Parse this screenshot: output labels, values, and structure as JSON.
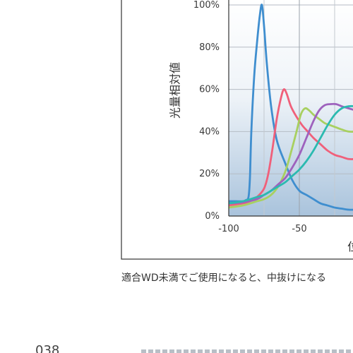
{
  "chart_data": {
    "type": "line",
    "title": "",
    "ylabel": "光量相対値",
    "xlabel_fragment": "位",
    "xlim": [
      -100,
      -10
    ],
    "ylim": [
      0,
      100
    ],
    "y_ticks": [
      "0%",
      "20%",
      "40%",
      "60%",
      "80%",
      "100%"
    ],
    "x_ticks": [
      {
        "value": -100,
        "label": "-100"
      },
      {
        "value": -50,
        "label": "-50"
      }
    ],
    "grid": true,
    "background": "gradient",
    "series": [
      {
        "color": "#3f8ecf",
        "x": [
          -100,
          -95,
          -90,
          -88,
          -86,
          -85,
          -84,
          -82,
          -80,
          -78,
          -76.5,
          -75,
          -73,
          -70,
          -66,
          -60,
          -55,
          -50,
          -45,
          -40,
          -35,
          -30,
          -25,
          -20,
          -15,
          -10
        ],
        "y": [
          7,
          7,
          7,
          7.5,
          9,
          18,
          40,
          66,
          82,
          95,
          100,
          90,
          72,
          52,
          36,
          25,
          17,
          12,
          10,
          8,
          6,
          5,
          4,
          3.5,
          3,
          3
        ]
      },
      {
        "color": "#f0607a",
        "x": [
          -100,
          -95,
          -90,
          -85,
          -80,
          -75,
          -72,
          -69,
          -66,
          -63,
          -61,
          -59,
          -56,
          -52,
          -48,
          -44,
          -40,
          -35,
          -30,
          -25,
          -20,
          -15,
          -10
        ],
        "y": [
          5,
          5.5,
          6,
          7,
          9,
          13,
          20,
          32,
          46,
          56,
          60,
          58,
          52,
          47,
          43,
          40,
          37,
          34,
          31,
          29,
          28,
          27,
          27
        ]
      },
      {
        "color": "#a8d060",
        "x": [
          -100,
          -90,
          -80,
          -75,
          -70,
          -65,
          -60,
          -56,
          -52,
          -49,
          -46,
          -43,
          -40,
          -36,
          -32,
          -28,
          -24,
          -20,
          -15,
          -10
        ],
        "y": [
          4,
          5,
          7,
          8,
          10,
          14,
          21,
          30,
          40,
          48,
          51,
          50,
          48,
          46,
          44,
          43,
          42,
          41,
          40,
          40
        ]
      },
      {
        "color": "#9e62bd",
        "x": [
          -100,
          -90,
          -80,
          -75,
          -70,
          -65,
          -60,
          -55,
          -50,
          -45,
          -40,
          -36,
          -32,
          -28,
          -24,
          -20,
          -15,
          -10
        ],
        "y": [
          6,
          6.5,
          8,
          10,
          12,
          15,
          18,
          23,
          29,
          37,
          45,
          50,
          52.5,
          53,
          53,
          52,
          51,
          50
        ]
      },
      {
        "color": "#2bbab0",
        "x": [
          -100,
          -90,
          -80,
          -75,
          -70,
          -65,
          -60,
          -55,
          -50,
          -45,
          -40,
          -35,
          -30,
          -25,
          -20,
          -15,
          -10
        ],
        "y": [
          6,
          7,
          9,
          10,
          12,
          14,
          16,
          19,
          22,
          26,
          31,
          37,
          43,
          48,
          51,
          52,
          52
        ]
      }
    ]
  },
  "caption": "適合WD未満でご使用になると、中抜けになる",
  "page_number": "038"
}
